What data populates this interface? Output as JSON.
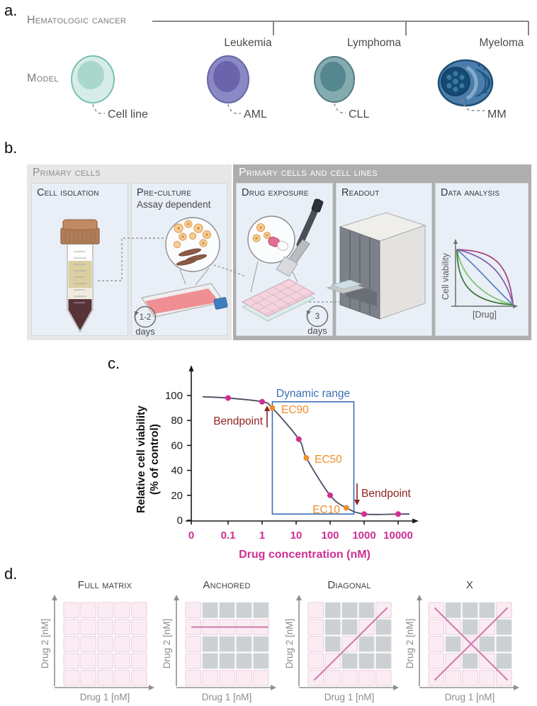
{
  "colors": {
    "magenta": "#cf2f94",
    "orange": "#ee8f2b",
    "dark-red": "#8e2320",
    "blue": "#3a6fb5",
    "curve": "#4d4d63",
    "pink-cell": "#fbecf3",
    "pink-cell-border": "#e9cfdd",
    "gray-cell": "#ccd0d3",
    "combo-line": "#d27fb0",
    "header-light-bg": "#e7e7e7",
    "header-dark-bg": "#aeaeae",
    "card-bg": "#e9eff7"
  },
  "panel_a": {
    "label": "a.",
    "group_title": "Hematologic cancer",
    "row_label": "Model",
    "cancer_types": [
      "Leukemia",
      "Lymphoma",
      "Myeloma"
    ],
    "models": [
      "Cell line",
      "AML",
      "CLL",
      "MM"
    ]
  },
  "panel_b": {
    "label": "b.",
    "sections": [
      {
        "title": "Primary cells"
      },
      {
        "title": "Primary cells and cell lines"
      }
    ],
    "steps": [
      {
        "title": "Cell isolation"
      },
      {
        "title": "Pre-culture",
        "subtitle": "Assay dependent",
        "duration": "1-2",
        "duration_unit": "days"
      },
      {
        "title": "Drug exposure",
        "duration": "3",
        "duration_unit": "days"
      },
      {
        "title": "Readout"
      },
      {
        "title": "Data analysis",
        "plot_ylabel": "Cell viability",
        "plot_xlabel": "[Drug]"
      }
    ]
  },
  "panel_c": {
    "label": "c.",
    "annotations": {
      "dynamic_range": "Dynamic range",
      "bendpoint": "Bendpoint",
      "ec90": "EC90",
      "ec50": "EC50",
      "ec10": "EC10"
    }
  },
  "chart_data": [
    {
      "type": "line",
      "title": "",
      "xlabel": "Drug concentration (nM)",
      "ylabel": "Relative cell viability (% of control)",
      "ylabel_lines": [
        "Relative cell viability",
        "(% of control)"
      ],
      "x_scale": "log",
      "x_ticks": [
        "0",
        "0.1",
        "1",
        "10",
        "100",
        "1000",
        "10000"
      ],
      "y_ticks": [
        0,
        20,
        40,
        60,
        80,
        100
      ],
      "ylim": [
        0,
        115
      ],
      "points": [
        {
          "conc": 0.1,
          "viability": 98,
          "marker": "magenta"
        },
        {
          "conc": 1,
          "viability": 95,
          "marker": "magenta"
        },
        {
          "conc": 2,
          "viability": 90,
          "marker": "orange",
          "label": "EC90"
        },
        {
          "conc": 12,
          "viability": 65,
          "marker": "magenta"
        },
        {
          "conc": 20,
          "viability": 50,
          "marker": "orange",
          "label": "EC50"
        },
        {
          "conc": 100,
          "viability": 20,
          "marker": "magenta"
        },
        {
          "conc": 300,
          "viability": 10,
          "marker": "orange",
          "label": "EC10"
        },
        {
          "conc": 1000,
          "viability": 5,
          "marker": "magenta"
        },
        {
          "conc": 10000,
          "viability": 5,
          "marker": "magenta"
        }
      ],
      "dynamic_range": {
        "from_conc": 2,
        "to_conc": 500,
        "top_viability": 95,
        "bottom_viability": 5
      }
    },
    {
      "type": "line",
      "id": "data-analysis-schematic",
      "xlabel": "[Drug]",
      "ylabel": "Cell viability",
      "series_colors": [
        "#a8447c",
        "#7f64a8",
        "#5d82c1",
        "#7ec36c",
        "#3e7d38"
      ]
    }
  ],
  "panel_d": {
    "label": "d.",
    "axis_x": "Drug 1 [nM]",
    "axis_y": "Drug 2 [nM]",
    "designs": [
      {
        "title": "Full matrix",
        "overlay": "none",
        "grid": [
          "PPPPP",
          "PPPPP",
          "PPPPP",
          "PPPPP",
          "PPPPP"
        ]
      },
      {
        "title": "Anchored",
        "overlay": "horizontal",
        "grid": [
          "PGGGG",
          "PPPPP",
          "PGGGG",
          "PGGGG",
          "PPPPP"
        ]
      },
      {
        "title": "Diagonal",
        "overlay": "diagonal",
        "grid": [
          "PGGGP",
          "PGGPG",
          "PGPGG",
          "PPGGG",
          "PPPPP"
        ]
      },
      {
        "title": "X",
        "overlay": "x",
        "grid": [
          "PGGGP",
          "PPGPG",
          "PGPGG",
          "PPGPG",
          "PPPPP"
        ]
      }
    ]
  }
}
